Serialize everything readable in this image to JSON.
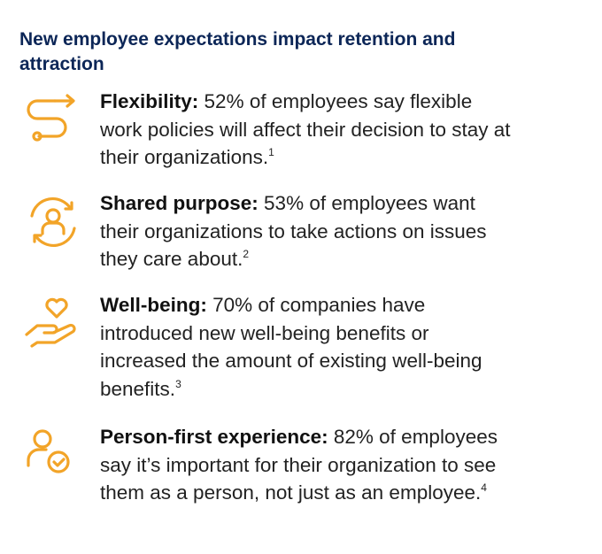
{
  "header": {
    "title": "New employee expectations impact retention and attraction"
  },
  "items": [
    {
      "label": "Flexibility:",
      "text": "52% of employees say flexible work policies will affect their decision to stay at their organizations.",
      "note": "1"
    },
    {
      "label": "Shared purpose:",
      "text": "53% of employees want their organizations to take actions on issues they care about.",
      "note": "2"
    },
    {
      "label": "Well-being:",
      "text": "70% of companies have introduced new well-being benefits or increased the amount of existing well-being benefits.",
      "note": "3"
    },
    {
      "label": "Person-first experience:",
      "text": "82% of employees say it’s important for their organization to see them as a person, not just as an employee.",
      "note": "4"
    }
  ]
}
